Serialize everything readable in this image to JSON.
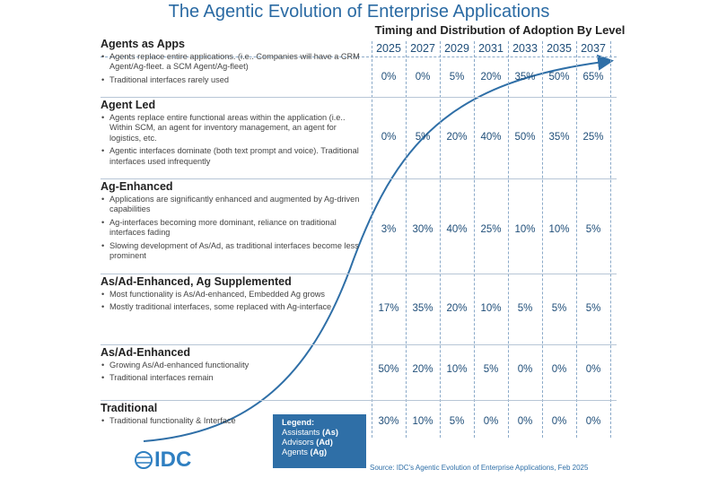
{
  "title": "The Agentic Evolution of Enterprise Applications",
  "timing_title": "Timing and Distribution of Adoption By Level",
  "years": [
    "2025",
    "2027",
    "2029",
    "2031",
    "2033",
    "2035",
    "2037"
  ],
  "levels": [
    {
      "title": "Agents as Apps",
      "bullets": [
        "Agents replace entire applications.  (i.e.. Companies will have a CRM Agent/Ag-fleet.  a SCM Agent/Ag-fleet)",
        "Traditional interfaces rarely used"
      ],
      "values": [
        "0%",
        "0%",
        "5%",
        "20%",
        "35%",
        "50%",
        "65%"
      ]
    },
    {
      "title": "Agent Led",
      "bullets": [
        "Agents replace entire functional areas within the application (i.e.. Within SCM, an agent for inventory management, an agent for logistics, etc.",
        "Agentic interfaces dominate (both text prompt and voice).  Traditional interfaces used infrequently"
      ],
      "values": [
        "0%",
        "5%",
        "20%",
        "40%",
        "50%",
        "35%",
        "25%"
      ]
    },
    {
      "title": "Ag-Enhanced",
      "bullets": [
        "Applications are significantly enhanced and augmented by Ag-driven capabilities",
        "Ag-interfaces becoming more dominant, reliance on traditional interfaces fading",
        "Slowing development of As/Ad, as traditional interfaces become less prominent"
      ],
      "values": [
        "3%",
        "30%",
        "40%",
        "25%",
        "10%",
        "10%",
        "5%"
      ]
    },
    {
      "title": "As/Ad-Enhanced, Ag Supplemented",
      "bullets": [
        "Most functionality is As/Ad-enhanced, Embedded Ag grows",
        "Mostly traditional interfaces, some replaced with Ag-interface"
      ],
      "values": [
        "17%",
        "35%",
        "20%",
        "10%",
        "5%",
        "5%",
        "5%"
      ]
    },
    {
      "title": "As/Ad-Enhanced",
      "bullets": [
        "Growing As/Ad-enhanced functionality",
        "Traditional interfaces remain"
      ],
      "values": [
        "50%",
        "20%",
        "10%",
        "5%",
        "0%",
        "0%",
        "0%"
      ]
    },
    {
      "title": "Traditional",
      "bullets": [
        "Traditional functionality & Interface"
      ],
      "values": [
        "30%",
        "10%",
        "5%",
        "0%",
        "0%",
        "0%",
        "0%"
      ]
    }
  ],
  "legend": {
    "title": "Legend:",
    "items": [
      {
        "text": "Assistants ",
        "abbr": "(As)"
      },
      {
        "text": "Advisors ",
        "abbr": "(Ad)"
      },
      {
        "text": "Agents ",
        "abbr": "(Ag)"
      }
    ]
  },
  "logo_text": "IDC",
  "source": "Source: IDC's Agentic Evolution of Enterprise Applications,  Feb 2025",
  "colors": {
    "title": "#2a6aa3",
    "values": "#1f4e79",
    "curve": "#2f6fa7",
    "legend_bg": "#2f6fa7",
    "logo": "#2f7fc1"
  }
}
